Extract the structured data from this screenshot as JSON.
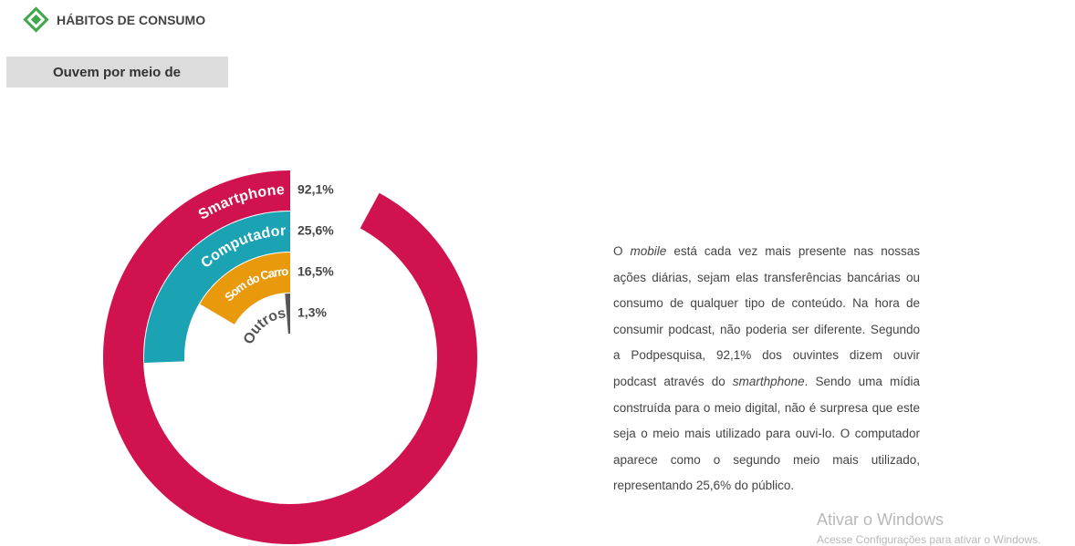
{
  "header": {
    "title": "HÁBITOS DE CONSUMO",
    "subtitle": "Ouvem por meio de"
  },
  "chart_data": {
    "type": "radial-bar",
    "categories": [
      "Smartphone",
      "Computador",
      "Som do Carro",
      "Outros"
    ],
    "values": [
      92.1,
      25.6,
      16.5,
      1.3
    ],
    "value_labels": [
      "92,1%",
      "25,6%",
      "16,5%",
      "1,3%"
    ],
    "colors": [
      "#d0134f",
      "#1ba3b4",
      "#e99a0c",
      "#555555"
    ]
  },
  "paragraph": [
    "O ",
    "mobile",
    " está cada vez mais presente nas nossas ações diárias, sejam elas transferências bancárias ou consumo de qualquer tipo de conteúdo. Na hora de consumir podcast, não poderia ser diferente. Segundo a Podpesquisa, 92,1% dos ouvintes dizem ouvir podcast através do ",
    "smarthphone",
    ". Sendo uma mídia construída para o meio digital, não é surpresa que este seja o meio mais utilizado para ouvi-lo. O computador aparece como o segundo meio mais utilizado, representando 25,6% do público."
  ],
  "watermark": {
    "title": "Ativar o Windows",
    "text": "Acesse Configurações para ativar o Windows."
  }
}
